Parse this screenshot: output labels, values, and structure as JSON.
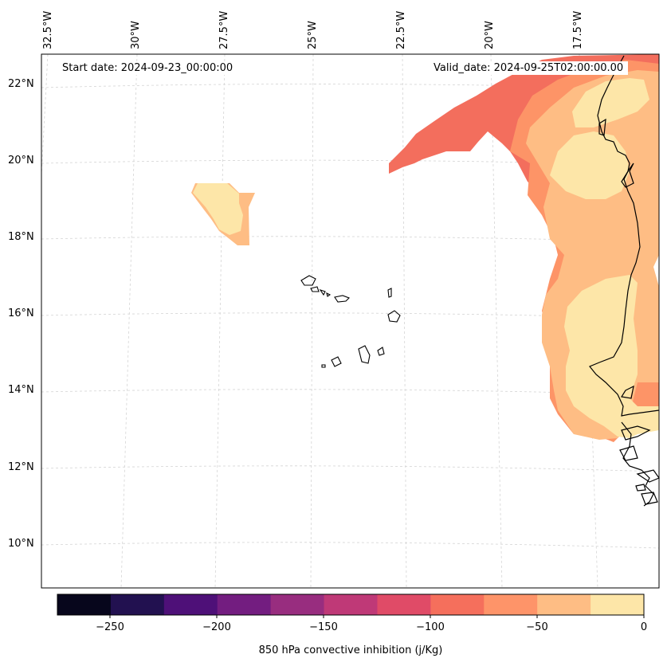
{
  "map": {
    "start_date": "Start date: 2024-09-23_00:00:00",
    "valid_date": "Valid_date: 2024-09-25T02:00:00.00",
    "lon_labels": [
      "32.5°W",
      "30°W",
      "27.5°W",
      "25°W",
      "22.5°W",
      "20°W",
      "17.5°W"
    ],
    "lat_labels": [
      "22°N",
      "20°N",
      "18°N",
      "16°N",
      "14°N",
      "12°N",
      "10°N"
    ],
    "colors": {
      "cin_0_25": "#fde6a8",
      "cin_25_50": "#febd84",
      "cin_50_75": "#fd9467",
      "cin_75_100": "#f36e5d",
      "coast": "#000000",
      "grid": "#d0d0d0"
    }
  },
  "colorbar": {
    "label": "850 hPa convective inhibition (j/Kg)",
    "ticks": [
      "−250",
      "−200",
      "−150",
      "−100",
      "−50",
      "0"
    ],
    "colors": [
      "#07061c",
      "#221150",
      "#4e1078",
      "#731d80",
      "#982d7f",
      "#bf3977",
      "#e04b67",
      "#f56f5c",
      "#fe9469",
      "#febd84",
      "#fde6a8"
    ]
  }
}
